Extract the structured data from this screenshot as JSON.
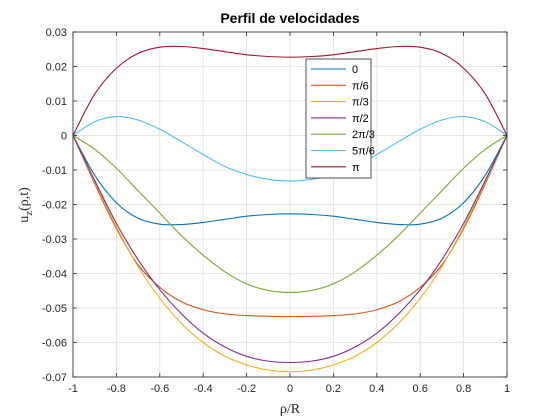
{
  "chart_data": {
    "type": "line",
    "title": "Perfil de velocidades",
    "xlabel": "ρ/R",
    "ylabel_main": "u",
    "ylabel_sub": "z",
    "ylabel_rest": "(ρ,t)",
    "xlim": [
      -1,
      1
    ],
    "ylim": [
      -0.07,
      0.03
    ],
    "xticks": [
      -1,
      -0.8,
      -0.6,
      -0.4,
      -0.2,
      0,
      0.2,
      0.4,
      0.6,
      0.8,
      1
    ],
    "xtick_labels": [
      "-1",
      "-0.8",
      "-0.6",
      "-0.4",
      "-0.2",
      "0",
      "0.2",
      "0.4",
      "0.6",
      "0.8",
      "1"
    ],
    "yticks": [
      -0.07,
      -0.06,
      -0.05,
      -0.04,
      -0.03,
      -0.02,
      -0.01,
      0,
      0.01,
      0.02,
      0.03
    ],
    "ytick_labels": [
      "-0.07",
      "-0.06",
      "-0.05",
      "-0.04",
      "-0.03",
      "-0.02",
      "-0.01",
      "0",
      "0.01",
      "0.02",
      "0.03"
    ],
    "grid": true,
    "legend_position": "upper-center",
    "x": [
      -1,
      -0.9,
      -0.8,
      -0.7,
      -0.6,
      -0.5,
      -0.4,
      -0.3,
      -0.2,
      -0.1,
      0,
      0.1,
      0.2,
      0.3,
      0.4,
      0.5,
      0.6,
      0.7,
      0.8,
      0.9,
      1
    ],
    "series": [
      {
        "name": "0",
        "color": "#0072BD",
        "values": [
          0,
          -0.0115,
          -0.0195,
          -0.024,
          -0.0257,
          -0.0258,
          -0.0252,
          -0.0243,
          -0.0234,
          -0.0229,
          -0.0227,
          -0.0229,
          -0.0234,
          -0.0243,
          -0.0252,
          -0.0258,
          -0.0257,
          -0.024,
          -0.0195,
          -0.0115,
          0
        ]
      },
      {
        "name": "π/6",
        "color": "#D95319",
        "values": [
          0,
          -0.014,
          -0.027,
          -0.0375,
          -0.044,
          -0.0482,
          -0.0505,
          -0.0517,
          -0.0522,
          -0.0524,
          -0.0525,
          -0.0524,
          -0.0522,
          -0.0517,
          -0.0505,
          -0.0482,
          -0.044,
          -0.0375,
          -0.027,
          -0.014,
          0
        ]
      },
      {
        "name": "π/3",
        "color": "#EDB120",
        "values": [
          0,
          -0.0135,
          -0.0265,
          -0.038,
          -0.0472,
          -0.0545,
          -0.06,
          -0.064,
          -0.0665,
          -0.068,
          -0.0685,
          -0.068,
          -0.0665,
          -0.064,
          -0.06,
          -0.0545,
          -0.0472,
          -0.038,
          -0.0265,
          -0.0135,
          0
        ]
      },
      {
        "name": "π/2",
        "color": "#7E2F8E",
        "values": [
          0,
          -0.013,
          -0.0255,
          -0.036,
          -0.0447,
          -0.0517,
          -0.0573,
          -0.0613,
          -0.064,
          -0.0654,
          -0.0658,
          -0.0654,
          -0.064,
          -0.0613,
          -0.0573,
          -0.0517,
          -0.0447,
          -0.036,
          -0.0255,
          -0.013,
          0
        ]
      },
      {
        "name": "2π/3",
        "color": "#77AC30",
        "values": [
          0,
          -0.004,
          -0.0095,
          -0.016,
          -0.0225,
          -0.029,
          -0.0347,
          -0.0395,
          -0.043,
          -0.0449,
          -0.0455,
          -0.0449,
          -0.043,
          -0.0395,
          -0.0347,
          -0.029,
          -0.0225,
          -0.016,
          -0.0095,
          -0.004,
          0
        ]
      },
      {
        "name": "5π/6",
        "color": "#4DBEEE",
        "values": [
          0,
          0.004,
          0.0055,
          0.0045,
          0.0018,
          -0.0018,
          -0.0055,
          -0.009,
          -0.0113,
          -0.0127,
          -0.0132,
          -0.0127,
          -0.0113,
          -0.009,
          -0.0055,
          -0.0018,
          0.0018,
          0.0045,
          0.0055,
          0.004,
          0
        ]
      },
      {
        "name": "π",
        "color": "#A2142F",
        "values": [
          0,
          0.012,
          0.0195,
          0.0238,
          0.0256,
          0.0258,
          0.0252,
          0.0243,
          0.0234,
          0.0229,
          0.0227,
          0.0229,
          0.0234,
          0.0243,
          0.0252,
          0.0258,
          0.0256,
          0.0238,
          0.0195,
          0.012,
          0
        ]
      }
    ]
  }
}
